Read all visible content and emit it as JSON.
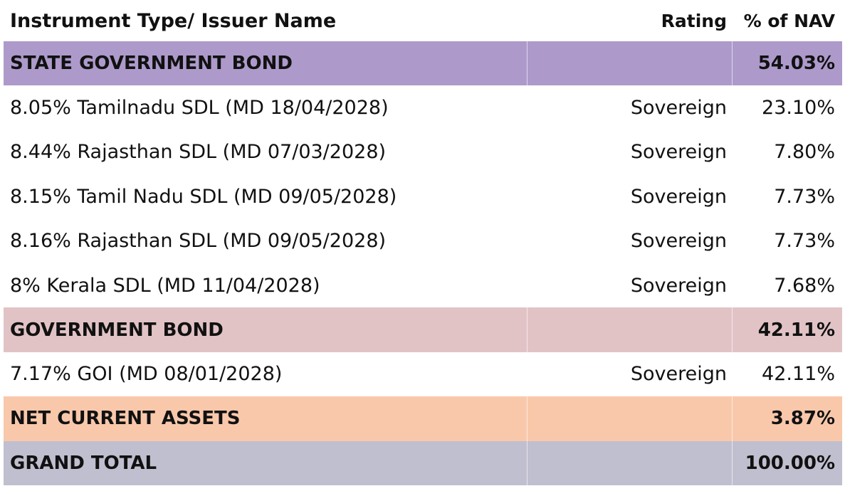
{
  "header": {
    "name": "Instrument Type/ Issuer Name",
    "rating": "Rating",
    "nav": "% of NAV"
  },
  "colors": {
    "state_government_bond": "#ad9acb",
    "government_bond": "#e1c3c6",
    "net_current_assets": "#f9c8ab",
    "grand_total": "#c0bfcf"
  },
  "groups": {
    "state": {
      "label": "STATE GOVERNMENT BOND",
      "nav": "54.03%",
      "items": [
        {
          "name": "8.05% Tamilnadu SDL (MD 18/04/2028)",
          "rating": "Sovereign",
          "nav": "23.10%"
        },
        {
          "name": "8.44% Rajasthan SDL (MD 07/03/2028)",
          "rating": "Sovereign",
          "nav": "7.80%"
        },
        {
          "name": "8.15% Tamil Nadu SDL (MD 09/05/2028)",
          "rating": "Sovereign",
          "nav": "7.73%"
        },
        {
          "name": "8.16% Rajasthan SDL (MD 09/05/2028)",
          "rating": "Sovereign",
          "nav": "7.73%"
        },
        {
          "name": "8% Kerala SDL (MD 11/04/2028)",
          "rating": "Sovereign",
          "nav": "7.68%"
        }
      ]
    },
    "government": {
      "label": "GOVERNMENT BOND",
      "nav": "42.11%",
      "items": [
        {
          "name": "7.17% GOI (MD 08/01/2028)",
          "rating": "Sovereign",
          "nav": "42.11%"
        }
      ]
    },
    "net_current_assets": {
      "label": "NET CURRENT ASSETS",
      "nav": "3.87%"
    },
    "grand_total": {
      "label": "GRAND TOTAL",
      "nav": "100.00%"
    }
  }
}
